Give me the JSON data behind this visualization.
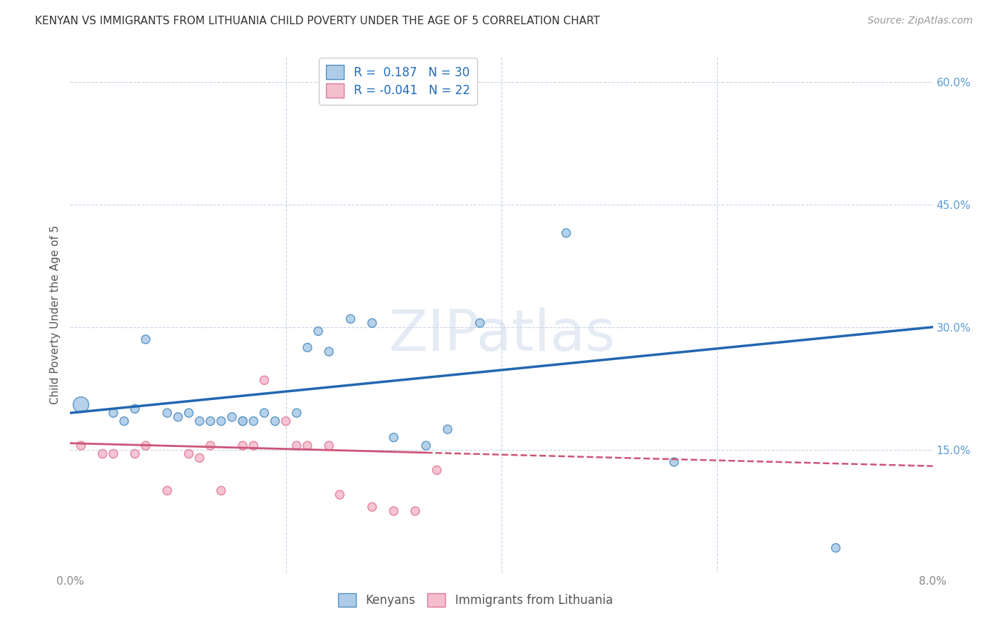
{
  "title": "KENYAN VS IMMIGRANTS FROM LITHUANIA CHILD POVERTY UNDER THE AGE OF 5 CORRELATION CHART",
  "source": "Source: ZipAtlas.com",
  "ylabel_label": "Child Poverty Under the Age of 5",
  "x_min": 0.0,
  "x_max": 0.08,
  "y_min": 0.0,
  "y_max": 0.63,
  "right_y_ticks": [
    0.15,
    0.3,
    0.45,
    0.6
  ],
  "right_y_tick_labels": [
    "15.0%",
    "30.0%",
    "45.0%",
    "60.0%"
  ],
  "kenyan_color": "#aecce8",
  "kenyan_edge_color": "#4f8fc0",
  "lithuania_color": "#f5bece",
  "lithuania_edge_color": "#e07898",
  "trend_kenyan_color": "#2267b0",
  "trend_lithuania_color": "#cc5577",
  "legend_R_kenyan": "R =  0.187",
  "legend_N_kenyan": "N = 30",
  "legend_R_lithuania": "R = -0.041",
  "legend_N_lithuania": "N = 22",
  "kenyan_x": [
    0.001,
    0.004,
    0.005,
    0.006,
    0.007,
    0.009,
    0.01,
    0.011,
    0.012,
    0.013,
    0.014,
    0.015,
    0.016,
    0.016,
    0.017,
    0.018,
    0.019,
    0.021,
    0.022,
    0.023,
    0.024,
    0.026,
    0.028,
    0.03,
    0.033,
    0.035,
    0.038,
    0.046,
    0.056,
    0.071
  ],
  "kenyan_y": [
    0.205,
    0.195,
    0.185,
    0.2,
    0.285,
    0.195,
    0.19,
    0.195,
    0.185,
    0.185,
    0.185,
    0.19,
    0.185,
    0.185,
    0.185,
    0.195,
    0.185,
    0.195,
    0.275,
    0.295,
    0.27,
    0.31,
    0.305,
    0.165,
    0.155,
    0.175,
    0.305,
    0.415,
    0.135,
    0.03
  ],
  "kenyan_size_large": [
    0
  ],
  "lithuania_x": [
    0.001,
    0.003,
    0.004,
    0.006,
    0.007,
    0.009,
    0.011,
    0.012,
    0.013,
    0.014,
    0.016,
    0.017,
    0.018,
    0.02,
    0.021,
    0.022,
    0.024,
    0.025,
    0.028,
    0.03,
    0.032,
    0.034
  ],
  "lithuania_y": [
    0.155,
    0.145,
    0.145,
    0.145,
    0.155,
    0.1,
    0.145,
    0.14,
    0.155,
    0.1,
    0.155,
    0.155,
    0.235,
    0.185,
    0.155,
    0.155,
    0.155,
    0.095,
    0.08,
    0.075,
    0.075,
    0.125
  ],
  "watermark": "ZIPatlas",
  "background_color": "#ffffff",
  "grid_color": "#c8d4e8"
}
